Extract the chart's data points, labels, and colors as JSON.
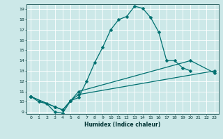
{
  "title": "",
  "xlabel": "Humidex (Indice chaleur)",
  "bg_color": "#cce8e8",
  "grid_color": "#ffffff",
  "line_color": "#007070",
  "xlim": [
    -0.5,
    23.5
  ],
  "ylim": [
    8.8,
    19.5
  ],
  "yticks": [
    9,
    10,
    11,
    12,
    13,
    14,
    15,
    16,
    17,
    18,
    19
  ],
  "xticks": [
    0,
    1,
    2,
    3,
    4,
    5,
    6,
    7,
    8,
    9,
    10,
    11,
    12,
    13,
    14,
    15,
    16,
    17,
    18,
    19,
    20,
    21,
    22,
    23
  ],
  "line1_x": [
    0,
    1,
    2,
    3,
    4,
    5,
    6,
    7,
    8,
    9,
    10,
    11,
    12,
    13,
    14,
    15,
    16,
    17,
    18,
    19,
    20
  ],
  "line1_y": [
    10.5,
    10.0,
    9.8,
    9.0,
    8.9,
    10.1,
    10.4,
    12.0,
    13.8,
    15.3,
    17.0,
    18.0,
    18.3,
    19.3,
    19.1,
    18.2,
    16.8,
    14.0,
    14.0,
    13.3,
    13.0
  ],
  "line2_x": [
    0,
    3,
    4,
    5,
    6,
    23
  ],
  "line2_y": [
    10.5,
    9.5,
    9.2,
    10.1,
    10.7,
    13.0
  ],
  "line3_x": [
    0,
    3,
    4,
    5,
    6,
    20,
    23
  ],
  "line3_y": [
    10.5,
    9.5,
    9.2,
    10.1,
    11.0,
    14.0,
    12.8
  ],
  "marker_size": 2.5,
  "line_width": 0.9
}
